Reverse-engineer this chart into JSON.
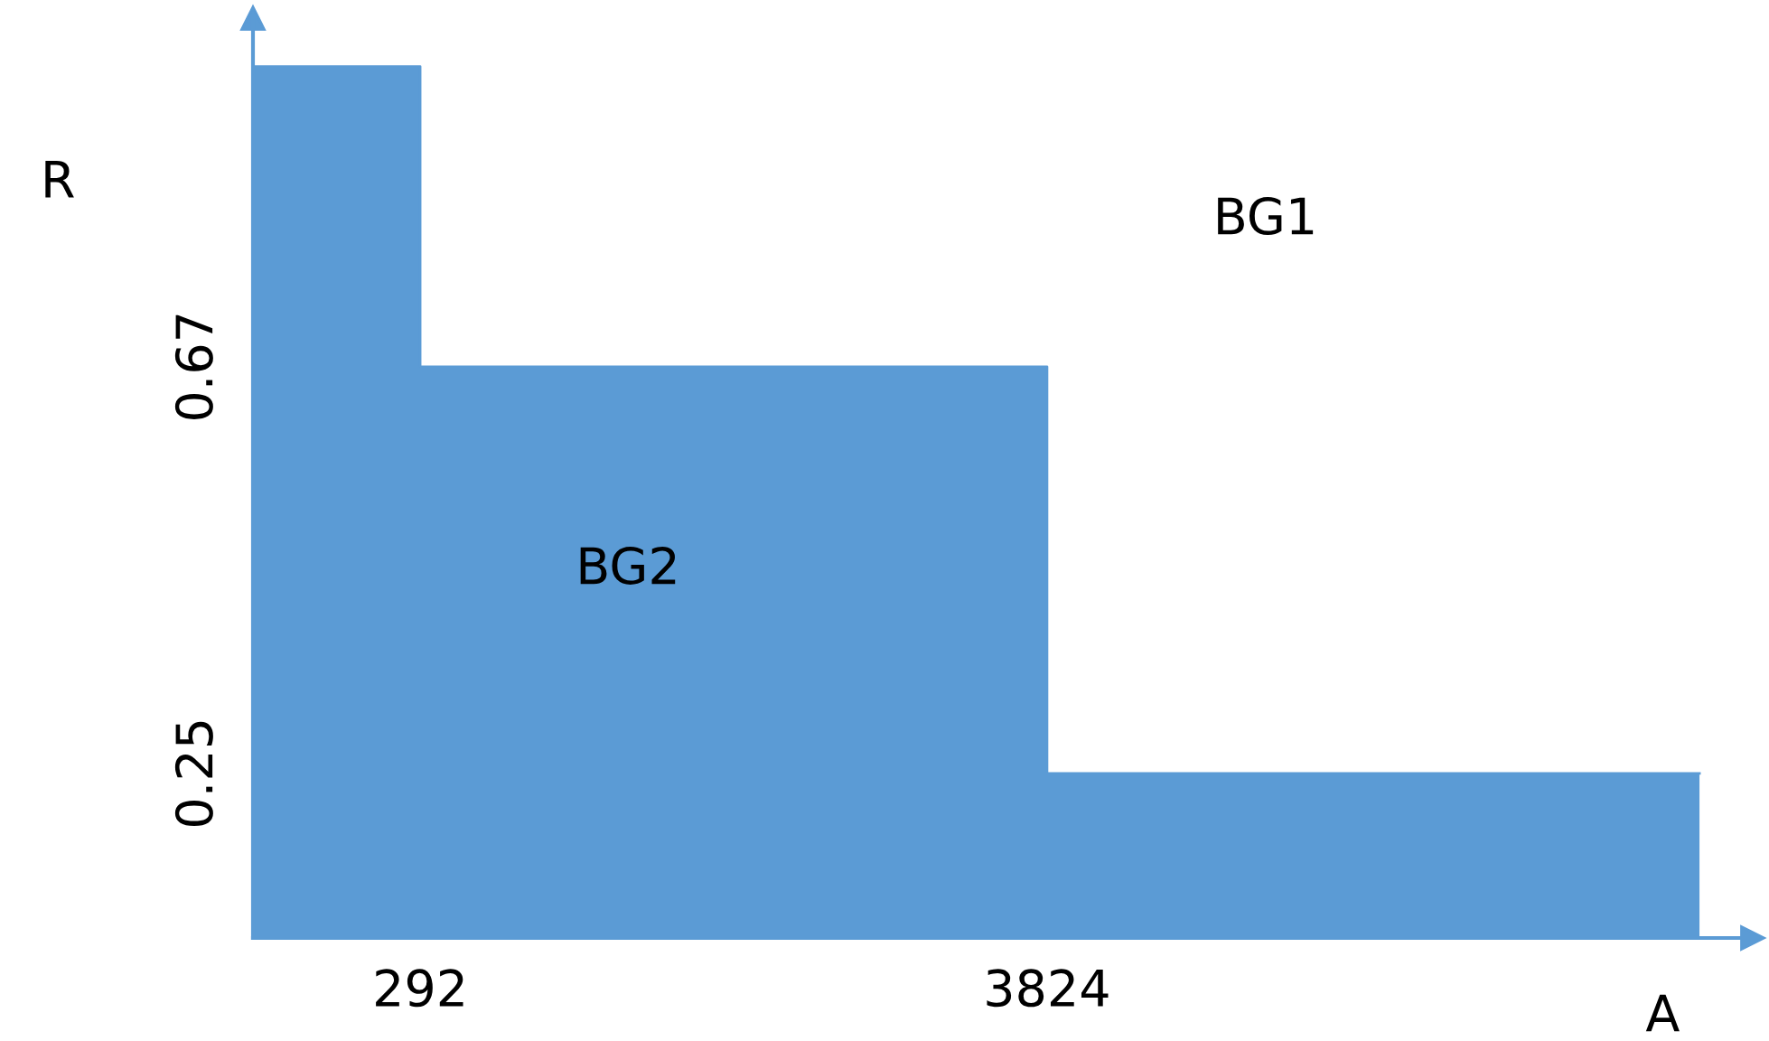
{
  "chart_data": {
    "type": "area",
    "xlabel": "A",
    "ylabel": "R",
    "color": "#5b9bd5",
    "x": [
      -650,
      292,
      292,
      3824,
      3824,
      7500
    ],
    "values": [
      0.98,
      0.98,
      0.67,
      0.67,
      0.25,
      0.25
    ],
    "xlim": [
      -650,
      7800
    ],
    "ylim": [
      0.08,
      1.03
    ],
    "xticks": [
      292,
      3824
    ],
    "yticks": [
      0.67,
      0.25
    ],
    "grid": false,
    "annotations": [
      "BG1",
      "BG2"
    ]
  }
}
